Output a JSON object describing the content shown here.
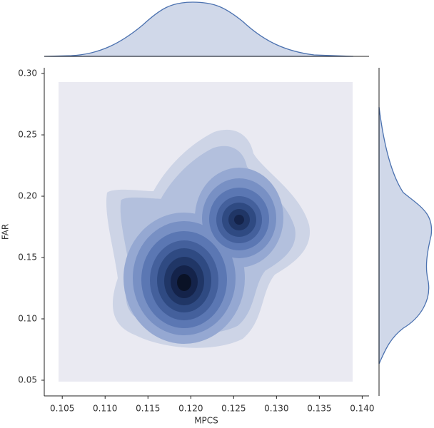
{
  "chart_data": {
    "type": "kde_joint",
    "xlabel": "MPCS",
    "ylabel": "FAR",
    "xlim": [
      0.1029,
      0.1408
    ],
    "xticks": [
      0.105,
      {
        "value": 0.11,
        "label": "0.110"
      },
      0.115,
      {
        "value": 0.12,
        "label": "0.120"
      },
      0.125,
      {
        "value": 0.13,
        "label": "0.130"
      },
      0.135,
      {
        "value": 0.14,
        "label": "0.140"
      }
    ],
    "ylim": [
      0.0372,
      0.3047
    ],
    "yticks": [
      {
        "value": 0.05,
        "label": "0.05"
      },
      {
        "value": 0.1,
        "label": "0.10"
      },
      0.15,
      {
        "value": 0.2,
        "label": "0.20"
      },
      0.25,
      {
        "value": 0.3,
        "label": "0.30"
      }
    ],
    "color": "#4c72b0"
  }
}
